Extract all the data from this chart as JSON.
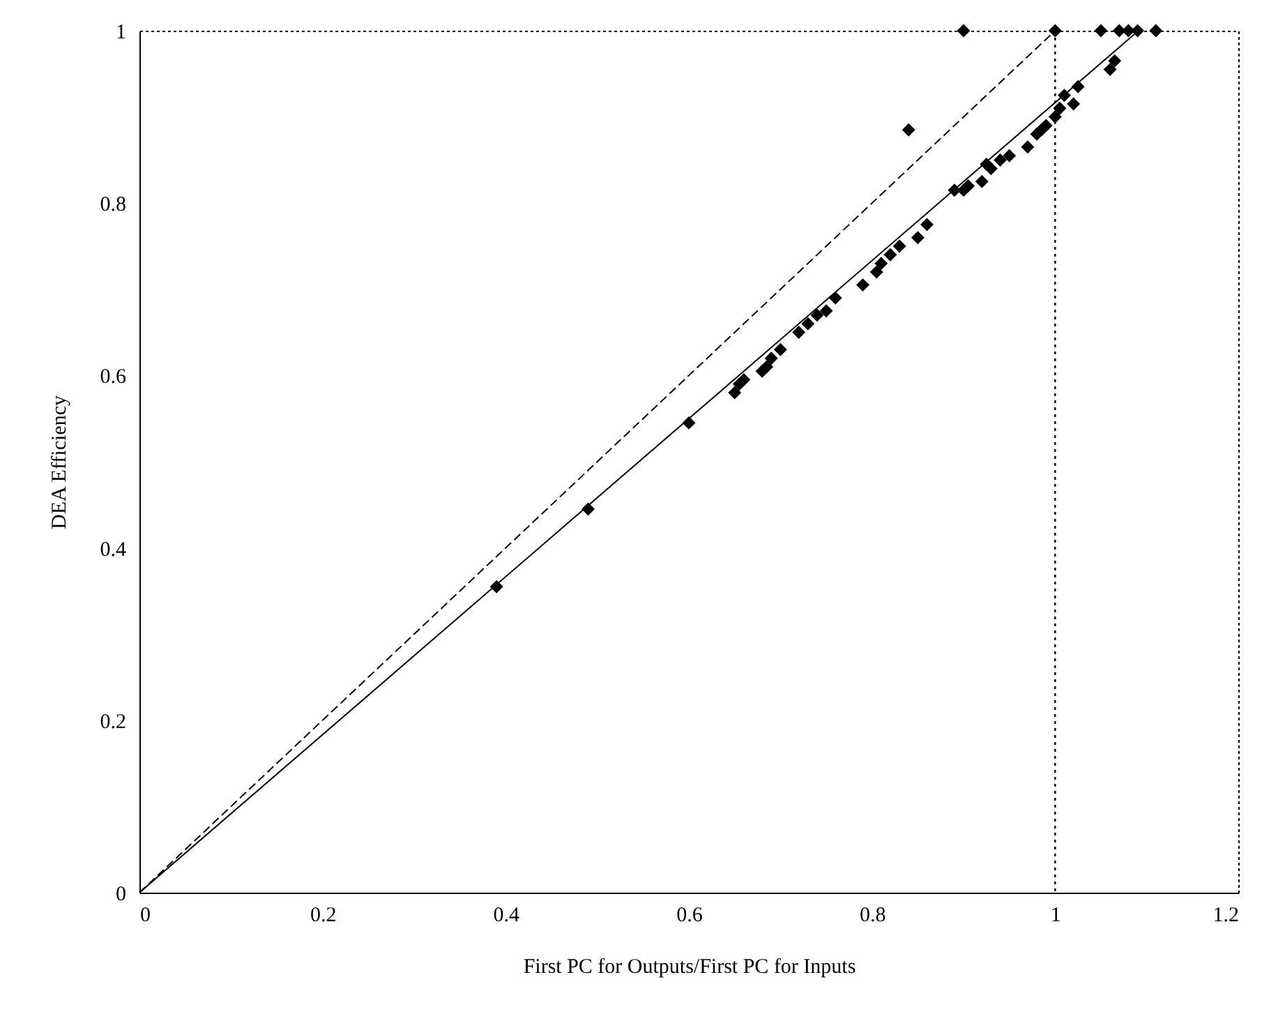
{
  "chart_data": {
    "type": "scatter",
    "xlabel": "First PC for Outputs/First PC for Inputs",
    "ylabel": "DEA Efficiency",
    "xlim": [
      0,
      1.2
    ],
    "ylim": [
      0,
      1
    ],
    "xticks": [
      0,
      0.2,
      0.4,
      0.6,
      0.8,
      1,
      1.2
    ],
    "yticks": [
      0,
      0.2,
      0.4,
      0.6,
      0.8,
      1
    ],
    "grid": false,
    "series": [
      {
        "marker": "diamond",
        "color": "#000000",
        "x": [
          0.39,
          0.49,
          0.6,
          0.65,
          0.655,
          0.66,
          0.68,
          0.685,
          0.69,
          0.7,
          0.72,
          0.73,
          0.74,
          0.75,
          0.76,
          0.79,
          0.805,
          0.81,
          0.82,
          0.83,
          0.85,
          0.86,
          0.89,
          0.9,
          0.905,
          0.92,
          0.925,
          0.93,
          0.94,
          0.95,
          0.97,
          0.98,
          0.985,
          0.99,
          1.0,
          1.005,
          1.01,
          1.02,
          1.025,
          1.06,
          1.065,
          0.84,
          0.9,
          1.0,
          1.05,
          1.07,
          1.08,
          1.09,
          1.11
        ],
        "values": [
          0.355,
          0.445,
          0.545,
          0.58,
          0.59,
          0.595,
          0.605,
          0.61,
          0.62,
          0.63,
          0.65,
          0.66,
          0.67,
          0.675,
          0.69,
          0.705,
          0.72,
          0.73,
          0.74,
          0.75,
          0.76,
          0.775,
          0.815,
          0.815,
          0.82,
          0.825,
          0.845,
          0.84,
          0.85,
          0.855,
          0.865,
          0.88,
          0.885,
          0.89,
          0.9,
          0.91,
          0.925,
          0.915,
          0.935,
          0.955,
          0.965,
          0.885,
          1,
          1,
          1,
          1,
          1,
          1,
          1
        ]
      },
      {
        "type": "line",
        "color": "#000000",
        "line_style": "dashed",
        "x": [
          0,
          1
        ],
        "values": [
          0,
          1
        ]
      },
      {
        "type": "line",
        "color": "#000000",
        "line_style": "solid",
        "x": [
          0,
          1.091
        ],
        "values": [
          0,
          1
        ]
      }
    ],
    "ref_lines": [
      {
        "axis": "x",
        "value": 1,
        "line_style": "dotted",
        "color": "#000000"
      }
    ]
  }
}
